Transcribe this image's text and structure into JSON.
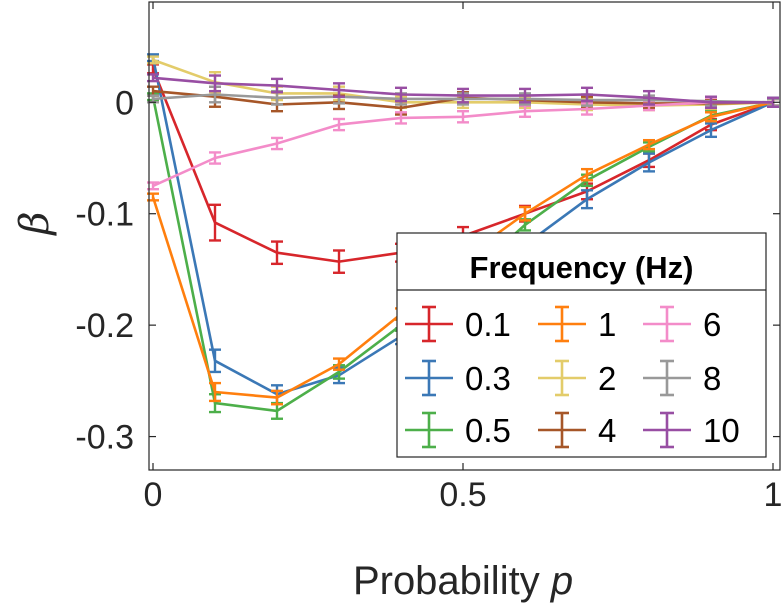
{
  "chart_data": {
    "type": "line",
    "xlabel_main": "Probability ",
    "xlabel_var": "p",
    "ylabel": "β",
    "xlim": [
      0,
      1
    ],
    "ylim": [
      -0.33,
      0.09
    ],
    "x_ticks": [
      0,
      0.5,
      1
    ],
    "x_tick_labels": [
      "0",
      "0.5",
      "1"
    ],
    "y_ticks": [
      0,
      -0.1,
      -0.2,
      -0.3
    ],
    "y_tick_labels": [
      "0",
      "-0.1",
      "-0.2",
      "-0.3"
    ],
    "grid": false,
    "legend": {
      "title": "Frequency (Hz)",
      "placement": "lower-right",
      "columns": 3
    },
    "x": [
      0,
      0.1,
      0.2,
      0.3,
      0.4,
      0.5,
      0.6,
      0.7,
      0.8,
      0.9,
      1.0
    ],
    "series": [
      {
        "name": "0.1",
        "color": "#d7262b",
        "values": [
          0.03,
          -0.108,
          -0.135,
          -0.143,
          -0.135,
          -0.12,
          -0.1,
          -0.08,
          -0.052,
          -0.02,
          0.0
        ],
        "errors": [
          0.004,
          0.016,
          0.01,
          0.01,
          0.008,
          0.008,
          0.007,
          0.007,
          0.006,
          0.005,
          0.004
        ]
      },
      {
        "name": "0.3",
        "color": "#3b78b6",
        "values": [
          0.04,
          -0.232,
          -0.262,
          -0.245,
          -0.21,
          -0.17,
          -0.128,
          -0.087,
          -0.054,
          -0.025,
          0.0
        ],
        "errors": [
          0.003,
          0.01,
          0.008,
          0.007,
          0.007,
          0.006,
          0.006,
          0.008,
          0.008,
          0.006,
          0.004
        ]
      },
      {
        "name": "0.5",
        "color": "#4daf4a",
        "values": [
          0.005,
          -0.27,
          -0.277,
          -0.242,
          -0.2,
          -0.16,
          -0.11,
          -0.07,
          -0.04,
          -0.012,
          0.0
        ],
        "errors": [
          0.003,
          0.008,
          0.007,
          0.006,
          0.005,
          0.005,
          0.005,
          0.005,
          0.004,
          0.004,
          0.003
        ]
      },
      {
        "name": "1",
        "color": "#ff7f0e",
        "values": [
          -0.085,
          -0.26,
          -0.265,
          -0.235,
          -0.19,
          -0.14,
          -0.1,
          -0.065,
          -0.038,
          -0.013,
          0.0
        ],
        "errors": [
          0.003,
          0.008,
          0.006,
          0.005,
          0.005,
          0.005,
          0.006,
          0.005,
          0.004,
          0.004,
          0.003
        ]
      },
      {
        "name": "2",
        "color": "#e3cc6a",
        "values": [
          0.038,
          0.018,
          0.008,
          0.008,
          0.0,
          0.0,
          0.0,
          -0.002,
          -0.003,
          -0.002,
          0.0
        ],
        "errors": [
          0.003,
          0.009,
          0.006,
          0.006,
          0.005,
          0.005,
          0.005,
          0.005,
          0.004,
          0.004,
          0.003
        ]
      },
      {
        "name": "4",
        "color": "#a65628",
        "values": [
          0.01,
          0.005,
          -0.002,
          0.0,
          -0.005,
          0.004,
          0.002,
          0.0,
          -0.001,
          -0.001,
          0.0
        ],
        "errors": [
          0.004,
          0.009,
          0.006,
          0.006,
          0.006,
          0.005,
          0.005,
          0.005,
          0.004,
          0.004,
          0.003
        ]
      },
      {
        "name": "6",
        "color": "#f38cc9",
        "values": [
          -0.075,
          -0.05,
          -0.037,
          -0.02,
          -0.014,
          -0.013,
          -0.008,
          -0.006,
          -0.003,
          0.0,
          0.0
        ],
        "errors": [
          0.003,
          0.005,
          0.005,
          0.005,
          0.005,
          0.005,
          0.005,
          0.005,
          0.004,
          0.004,
          0.003
        ]
      },
      {
        "name": "8",
        "color": "#999999",
        "values": [
          0.003,
          0.007,
          0.004,
          0.005,
          0.003,
          0.003,
          0.003,
          0.002,
          0.002,
          0.001,
          0.0
        ],
        "errors": [
          0.003,
          0.007,
          0.006,
          0.006,
          0.005,
          0.005,
          0.005,
          0.005,
          0.004,
          0.004,
          0.003
        ]
      },
      {
        "name": "10",
        "color": "#984ea3",
        "values": [
          0.022,
          0.017,
          0.015,
          0.011,
          0.007,
          0.006,
          0.006,
          0.007,
          0.004,
          0.0,
          0.0
        ],
        "errors": [
          0.003,
          0.007,
          0.006,
          0.006,
          0.006,
          0.006,
          0.006,
          0.006,
          0.006,
          0.005,
          0.004
        ]
      }
    ]
  }
}
